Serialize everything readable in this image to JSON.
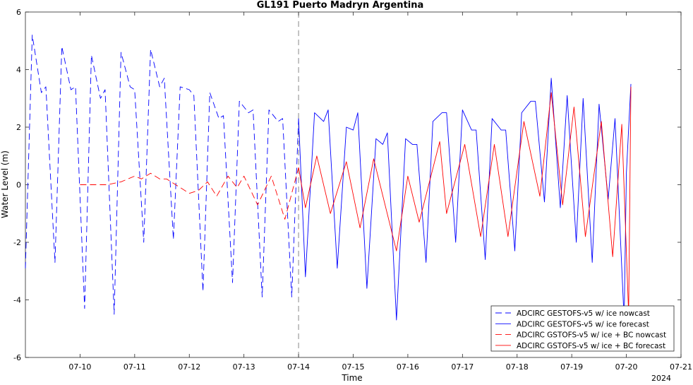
{
  "chart_data": {
    "type": "line",
    "title": "GL191 Puerto Madryn Argentina",
    "xlabel": "Time",
    "ylabel": "Water Level (m)",
    "ylim": [
      -6,
      6
    ],
    "yticks": [
      -6,
      -4,
      -2,
      0,
      2,
      4,
      6
    ],
    "xlim": [
      "2024-07-09T00:00",
      "2024-07-21T00:00"
    ],
    "xticks": [
      {
        "x": "2024-07-10",
        "label": "07-10"
      },
      {
        "x": "2024-07-11",
        "label": "07-11"
      },
      {
        "x": "2024-07-12",
        "label": "07-12"
      },
      {
        "x": "2024-07-13",
        "label": "07-13"
      },
      {
        "x": "2024-07-14",
        "label": "07-14"
      },
      {
        "x": "2024-07-15",
        "label": "07-15"
      },
      {
        "x": "2024-07-16",
        "label": "07-16"
      },
      {
        "x": "2024-07-17",
        "label": "07-17"
      },
      {
        "x": "2024-07-18",
        "label": "07-18"
      },
      {
        "x": "2024-07-19",
        "label": "07-19"
      },
      {
        "x": "2024-07-20",
        "label": "07-20"
      },
      {
        "x": "2024-07-21",
        "label": "07-21"
      }
    ],
    "year_label": "2024",
    "nowcast_forecast_boundary": "2024-07-14T00:00",
    "grid": false,
    "legend_position": "bottom-right",
    "series": [
      {
        "name": "ADCIRC GESTOFS-v5 w/ ice nowcast",
        "color": "#0000ff",
        "dash": "dashed",
        "points": [
          [
            "2024-07-09T00:00",
            -2.9
          ],
          [
            "2024-07-09T03:00",
            5.2
          ],
          [
            "2024-07-09T07:00",
            3.2
          ],
          [
            "2024-07-09T09:00",
            3.4
          ],
          [
            "2024-07-09T13:00",
            -2.7
          ],
          [
            "2024-07-09T16:00",
            4.8
          ],
          [
            "2024-07-09T20:00",
            3.3
          ],
          [
            "2024-07-09T22:00",
            3.4
          ],
          [
            "2024-07-10T02:00",
            -4.3
          ],
          [
            "2024-07-10T05:00",
            4.5
          ],
          [
            "2024-07-10T09:00",
            3.0
          ],
          [
            "2024-07-10T11:00",
            3.3
          ],
          [
            "2024-07-10T15:00",
            -4.5
          ],
          [
            "2024-07-10T18:00",
            4.6
          ],
          [
            "2024-07-10T22:00",
            3.4
          ],
          [
            "2024-07-10T23:59",
            3.3
          ],
          [
            "2024-07-11T04:00",
            -2.0
          ],
          [
            "2024-07-11T07:00",
            4.7
          ],
          [
            "2024-07-11T11:00",
            3.4
          ],
          [
            "2024-07-11T13:00",
            3.7
          ],
          [
            "2024-07-11T17:00",
            -1.9
          ],
          [
            "2024-07-11T20:00",
            3.4
          ],
          [
            "2024-07-12T00:00",
            3.3
          ],
          [
            "2024-07-12T02:00",
            3.1
          ],
          [
            "2024-07-12T06:00",
            -3.7
          ],
          [
            "2024-07-12T09:00",
            3.2
          ],
          [
            "2024-07-12T13:00",
            2.3
          ],
          [
            "2024-07-12T15:00",
            2.4
          ],
          [
            "2024-07-12T19:00",
            -3.4
          ],
          [
            "2024-07-12T22:00",
            2.9
          ],
          [
            "2024-07-13T02:00",
            2.5
          ],
          [
            "2024-07-13T04:00",
            2.6
          ],
          [
            "2024-07-13T08:00",
            -3.9
          ],
          [
            "2024-07-13T11:00",
            2.6
          ],
          [
            "2024-07-13T15:00",
            2.2
          ],
          [
            "2024-07-13T17:00",
            2.3
          ],
          [
            "2024-07-13T21:00",
            -3.9
          ],
          [
            "2024-07-14T00:00",
            2.3
          ]
        ]
      },
      {
        "name": "ADCIRC GESTOFS-v5 w/ ice forecast",
        "color": "#0000ff",
        "dash": "solid",
        "points": [
          [
            "2024-07-14T00:00",
            2.3
          ],
          [
            "2024-07-14T03:00",
            -3.2
          ],
          [
            "2024-07-14T07:00",
            2.5
          ],
          [
            "2024-07-14T11:00",
            2.2
          ],
          [
            "2024-07-14T13:00",
            2.6
          ],
          [
            "2024-07-14T17:00",
            -2.9
          ],
          [
            "2024-07-14T21:00",
            2.0
          ],
          [
            "2024-07-15T00:00",
            1.9
          ],
          [
            "2024-07-15T02:00",
            2.5
          ],
          [
            "2024-07-15T06:00",
            -3.6
          ],
          [
            "2024-07-15T10:00",
            1.6
          ],
          [
            "2024-07-15T13:00",
            1.4
          ],
          [
            "2024-07-15T15:00",
            1.8
          ],
          [
            "2024-07-15T19:00",
            -4.7
          ],
          [
            "2024-07-15T23:00",
            1.6
          ],
          [
            "2024-07-16T02:00",
            1.4
          ],
          [
            "2024-07-16T04:00",
            1.4
          ],
          [
            "2024-07-16T08:00",
            -2.7
          ],
          [
            "2024-07-16T11:00",
            2.2
          ],
          [
            "2024-07-16T15:00",
            2.5
          ],
          [
            "2024-07-16T17:00",
            2.5
          ],
          [
            "2024-07-16T21:00",
            -2.0
          ],
          [
            "2024-07-17T00:00",
            2.6
          ],
          [
            "2024-07-17T04:00",
            1.9
          ],
          [
            "2024-07-17T06:00",
            1.9
          ],
          [
            "2024-07-17T10:00",
            -2.6
          ],
          [
            "2024-07-17T13:00",
            2.3
          ],
          [
            "2024-07-17T17:00",
            1.9
          ],
          [
            "2024-07-17T19:00",
            1.9
          ],
          [
            "2024-07-17T23:00",
            -2.3
          ],
          [
            "2024-07-18T02:00",
            2.5
          ],
          [
            "2024-07-18T06:00",
            2.9
          ],
          [
            "2024-07-18T08:00",
            2.9
          ],
          [
            "2024-07-18T12:00",
            -0.6
          ],
          [
            "2024-07-18T15:00",
            3.7
          ],
          [
            "2024-07-18T19:00",
            -0.8
          ],
          [
            "2024-07-18T22:00",
            3.1
          ],
          [
            "2024-07-19T02:00",
            -2.0
          ],
          [
            "2024-07-19T05:00",
            3.0
          ],
          [
            "2024-07-19T09:00",
            -2.7
          ],
          [
            "2024-07-19T12:00",
            2.8
          ],
          [
            "2024-07-19T16:00",
            -0.5
          ],
          [
            "2024-07-19T19:00",
            2.3
          ],
          [
            "2024-07-19T23:00",
            -4.7
          ],
          [
            "2024-07-20T00:00",
            0.4
          ],
          [
            "2024-07-20T02:00",
            3.5
          ]
        ]
      },
      {
        "name": "ADCIRC GSTOFS-v5 w/ ice + BC nowcast",
        "color": "#ff0000",
        "dash": "dashed",
        "points": [
          [
            "2024-07-10T00:00",
            0.0
          ],
          [
            "2024-07-10T06:00",
            0.0
          ],
          [
            "2024-07-10T12:00",
            0.0
          ],
          [
            "2024-07-10T18:00",
            0.1
          ],
          [
            "2024-07-11T00:00",
            0.3
          ],
          [
            "2024-07-11T03:00",
            0.2
          ],
          [
            "2024-07-11T07:00",
            0.4
          ],
          [
            "2024-07-11T11:00",
            0.2
          ],
          [
            "2024-07-11T14:00",
            0.2
          ],
          [
            "2024-07-12T00:00",
            -0.3
          ],
          [
            "2024-07-12T04:00",
            -0.2
          ],
          [
            "2024-07-12T08:00",
            0.1
          ],
          [
            "2024-07-12T12:00",
            -0.4
          ],
          [
            "2024-07-12T17:00",
            0.3
          ],
          [
            "2024-07-12T21:00",
            -0.1
          ],
          [
            "2024-07-13T00:00",
            0.3
          ],
          [
            "2024-07-13T06:00",
            -0.7
          ],
          [
            "2024-07-13T12:00",
            0.3
          ],
          [
            "2024-07-13T18:00",
            -1.2
          ],
          [
            "2024-07-14T00:00",
            0.6
          ]
        ]
      },
      {
        "name": "ADCIRC GSTOFS-v5 w/ ice + BC forecast",
        "color": "#ff0000",
        "dash": "solid",
        "points": [
          [
            "2024-07-14T00:00",
            0.6
          ],
          [
            "2024-07-14T03:00",
            -0.8
          ],
          [
            "2024-07-14T08:00",
            1.0
          ],
          [
            "2024-07-14T14:00",
            -1.0
          ],
          [
            "2024-07-14T21:00",
            0.8
          ],
          [
            "2024-07-15T03:00",
            -1.5
          ],
          [
            "2024-07-15T09:00",
            0.9
          ],
          [
            "2024-07-15T19:00",
            -2.3
          ],
          [
            "2024-07-16T00:00",
            0.3
          ],
          [
            "2024-07-16T05:00",
            -1.3
          ],
          [
            "2024-07-16T14:00",
            1.5
          ],
          [
            "2024-07-16T17:00",
            -1.0
          ],
          [
            "2024-07-17T01:00",
            1.4
          ],
          [
            "2024-07-17T08:00",
            -1.8
          ],
          [
            "2024-07-17T14:00",
            1.4
          ],
          [
            "2024-07-17T20:00",
            -1.8
          ],
          [
            "2024-07-18T03:00",
            2.2
          ],
          [
            "2024-07-18T10:00",
            -0.4
          ],
          [
            "2024-07-18T15:00",
            3.2
          ],
          [
            "2024-07-18T20:00",
            -0.7
          ],
          [
            "2024-07-19T01:00",
            2.7
          ],
          [
            "2024-07-19T06:00",
            -1.8
          ],
          [
            "2024-07-19T13:00",
            2.2
          ],
          [
            "2024-07-19T18:00",
            -2.5
          ],
          [
            "2024-07-19T22:00",
            2.1
          ],
          [
            "2024-07-20T01:00",
            -4.5
          ],
          [
            "2024-07-20T02:00",
            3.4
          ]
        ]
      }
    ]
  }
}
